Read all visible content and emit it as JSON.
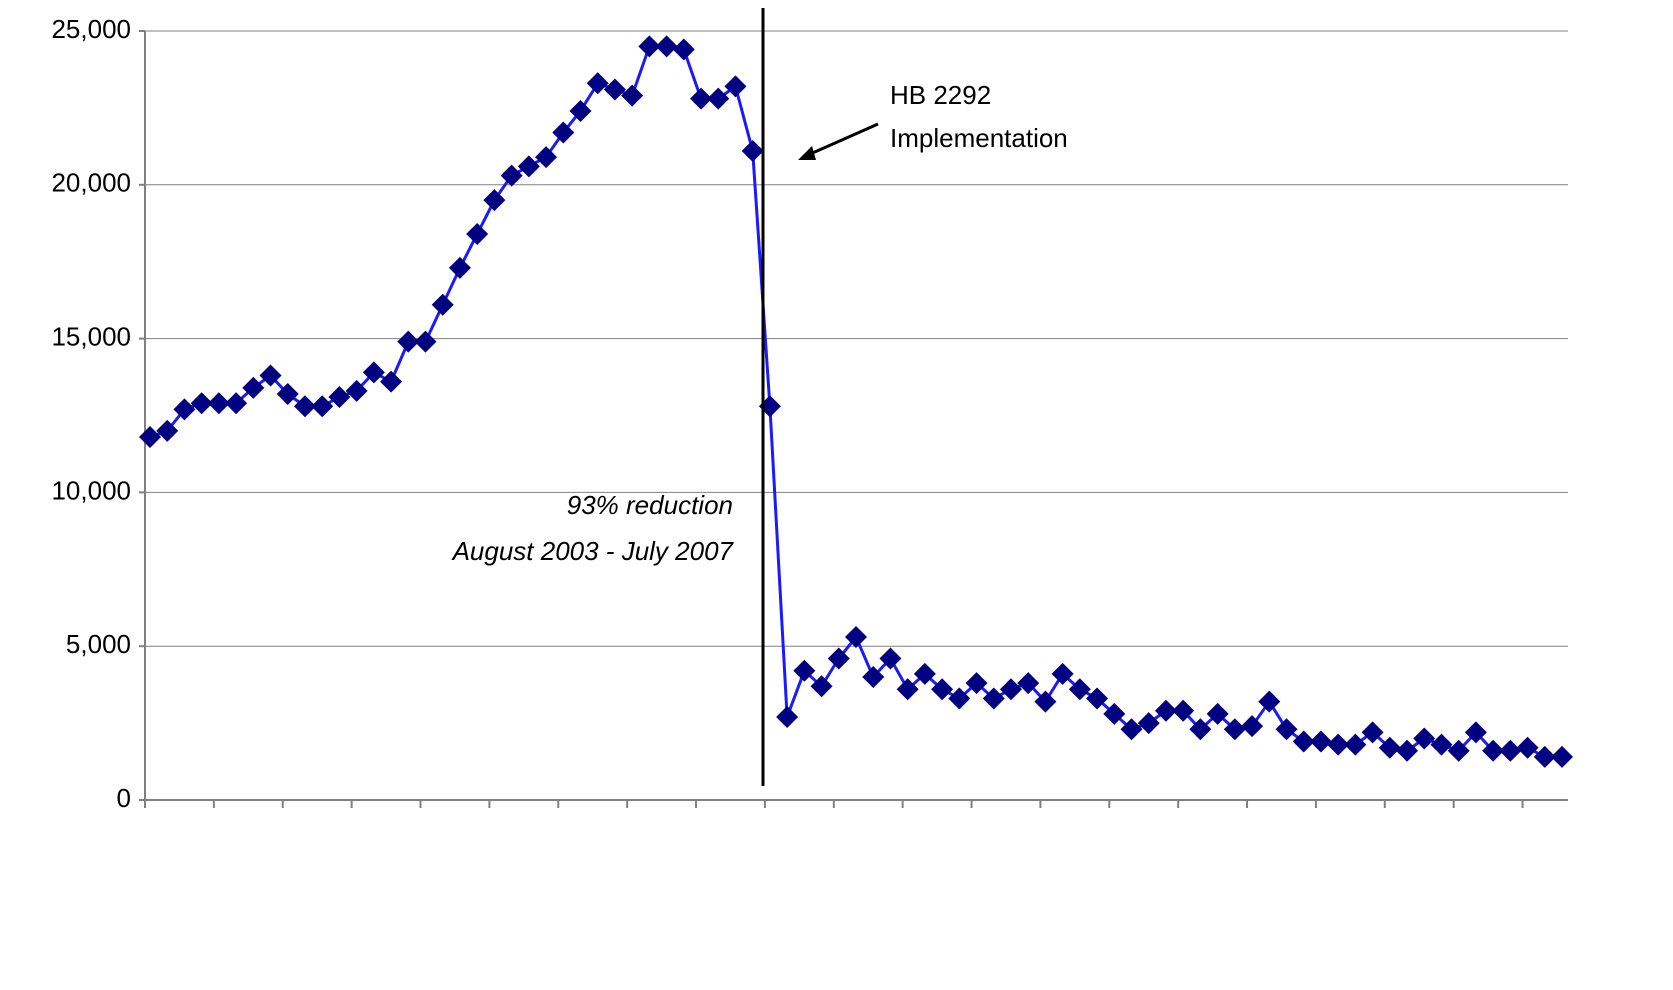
{
  "chart_data": {
    "type": "line",
    "annotations": [
      "HB 2292",
      "Implementation",
      "93% reduction",
      "August 2003 -  July 2007"
    ],
    "categories": [
      null,
      null,
      null,
      null,
      null,
      null,
      null,
      null,
      null,
      null,
      null,
      null,
      null,
      null,
      null,
      null,
      null,
      null,
      null,
      null,
      null,
      null,
      null,
      null,
      null,
      null,
      null,
      null,
      null,
      null,
      null,
      null,
      null,
      null,
      null,
      null,
      null,
      null,
      null,
      null,
      null,
      null,
      null,
      null,
      null,
      null,
      null,
      null,
      null,
      null,
      null,
      null,
      null,
      null,
      null,
      null,
      null,
      null,
      null,
      null,
      null,
      null,
      null,
      null,
      null,
      null,
      null,
      null,
      null,
      null,
      null,
      null,
      null,
      null,
      null,
      null,
      null,
      null,
      null,
      null,
      null,
      null,
      null
    ],
    "series": [
      {
        "name": null,
        "color": "#1a1aff",
        "marker_color": "#000080",
        "values": [
          11800,
          12000,
          12700,
          12900,
          12900,
          12900,
          13400,
          13800,
          13200,
          12800,
          12800,
          13100,
          13300,
          13900,
          13600,
          14900,
          14900,
          16100,
          17300,
          18400,
          19500,
          20300,
          20600,
          20900,
          21700,
          22400,
          23300,
          23100,
          22900,
          24500,
          24500,
          24400,
          22800,
          22800,
          23200,
          21100,
          12800,
          2700,
          4200,
          3700,
          4600,
          5300,
          4000,
          4600,
          3600,
          4100,
          3600,
          3300,
          3800,
          3300,
          3600,
          3800,
          3200,
          4100,
          3600,
          3300,
          2800,
          2300,
          2500,
          2900,
          2900,
          2300,
          2800,
          2300,
          2400,
          3200,
          2300,
          1900,
          1900,
          1800,
          1800,
          2200,
          1700,
          1600,
          2000,
          1800,
          1600,
          2200,
          1600,
          1600,
          1700,
          1400,
          1400
        ]
      }
    ],
    "ylim": [
      0,
      25000
    ],
    "yticks": [
      0,
      {
        "value": 5000,
        "label": "5,000"
      },
      {
        "value": 10000,
        "label": "10,000"
      },
      {
        "value": 15000,
        "label": "15,000"
      },
      {
        "value": 20000,
        "label": "20,000"
      },
      {
        "value": 25000,
        "label": "25,000"
      }
    ],
    "grid": true
  }
}
